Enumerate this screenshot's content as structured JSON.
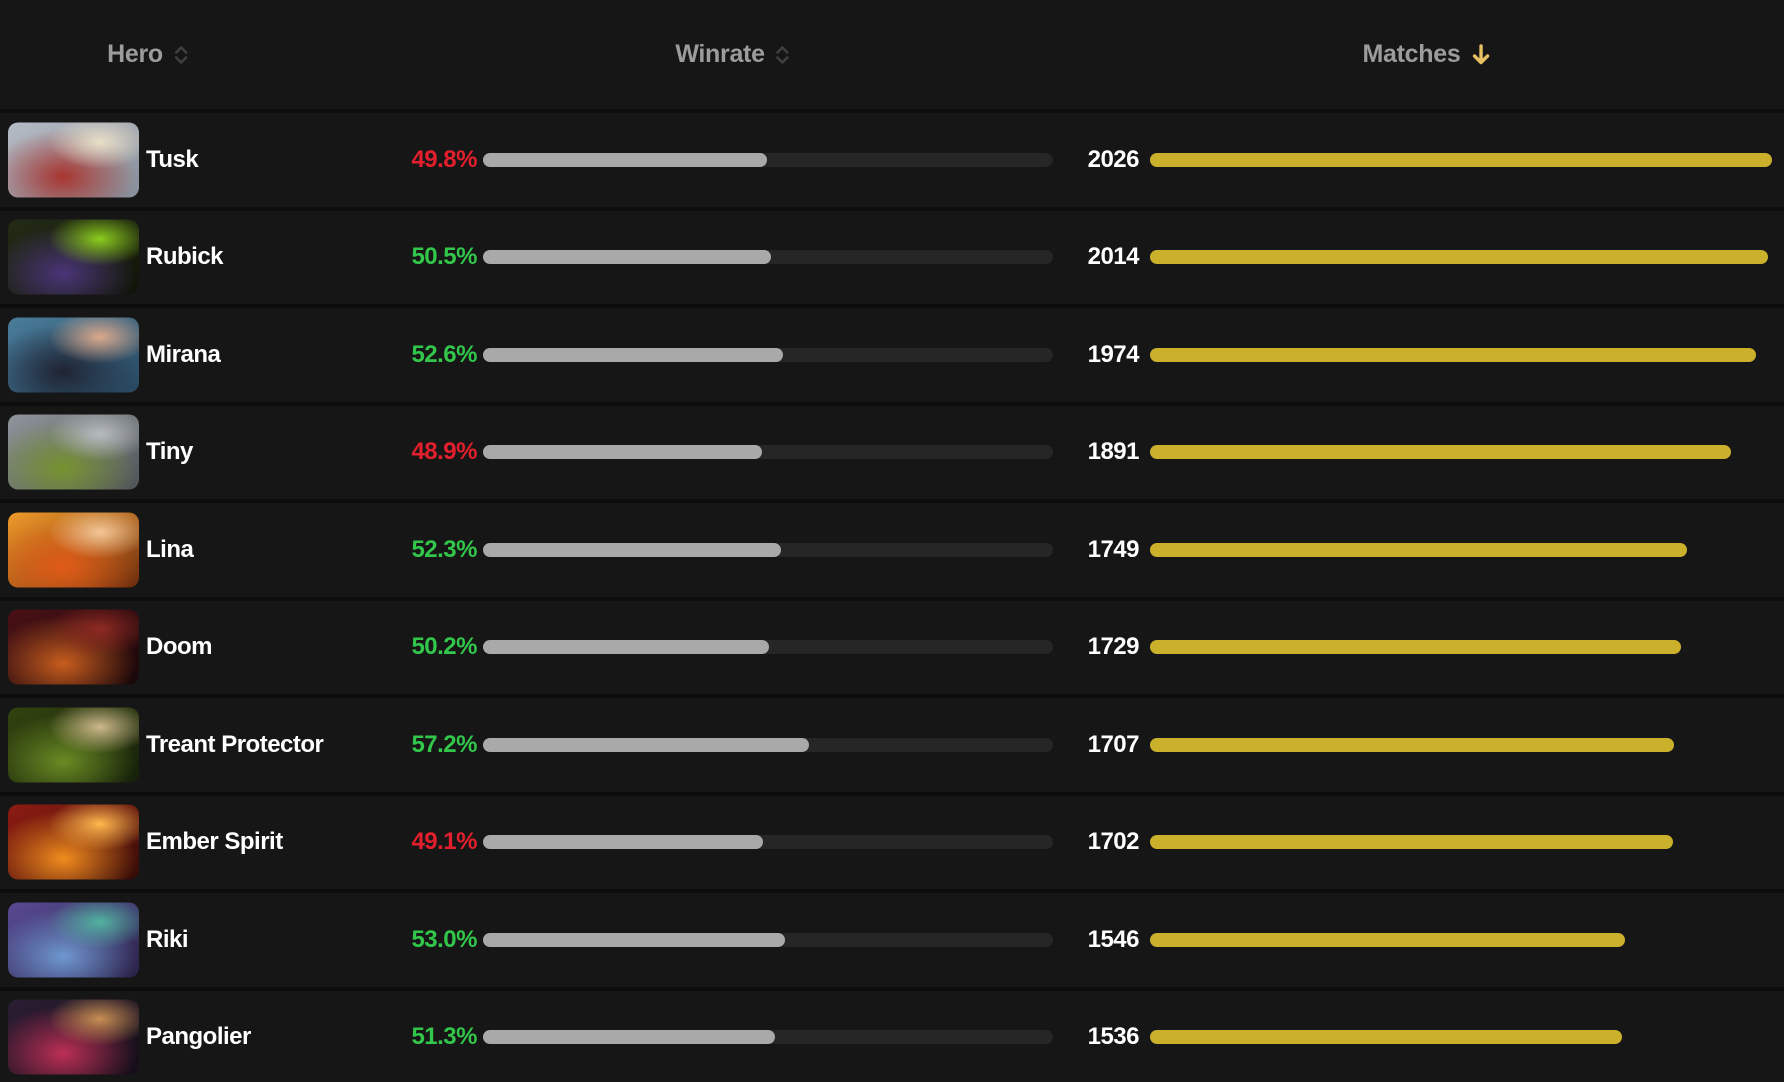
{
  "columns": {
    "hero": {
      "label": "Hero",
      "sort_icon": "sort-both-icon"
    },
    "winrate": {
      "label": "Winrate",
      "sort_icon": "sort-both-icon"
    },
    "matches": {
      "label": "Matches",
      "sort_icon": "sort-desc-arrow-icon",
      "sorted": "descending"
    }
  },
  "colors": {
    "background": "#161616",
    "row_separator": "#0d0d0d",
    "header_text": "#9c9c9c",
    "sort_icon": "#3f3f3f",
    "sort_active_arrow": "#e6c162",
    "hero_name_text": "#ffffff",
    "matches_text": "#ffffff",
    "winrate_positive": "#32c64a",
    "winrate_negative": "#e41f2d",
    "winrate_bar_fill": "#a9a9a9",
    "winrate_bar_track": "#262626",
    "matches_bar_fill": "#cbb02c"
  },
  "bars": {
    "winrate_max_pct": 100,
    "matches_max": 2026
  },
  "rows": [
    {
      "hero": "Tusk",
      "winrate_pct": "49.8%",
      "winrate_value": 49.8,
      "trend": "negative",
      "matches": "2026",
      "matches_value": 2026,
      "portrait": {
        "bg1": "#b6bcc6",
        "bg2": "#868e99",
        "body": "#a83530",
        "accent": "#e9dfc8"
      }
    },
    {
      "hero": "Rubick",
      "winrate_pct": "50.5%",
      "winrate_value": 50.5,
      "trend": "positive",
      "matches": "2014",
      "matches_value": 2014,
      "portrait": {
        "bg1": "#232b16",
        "bg2": "#101408",
        "body": "#4a3578",
        "accent": "#8ccc1e"
      }
    },
    {
      "hero": "Mirana",
      "winrate_pct": "52.6%",
      "winrate_value": 52.6,
      "trend": "positive",
      "matches": "1974",
      "matches_value": 1974,
      "portrait": {
        "bg1": "#4a7d9b",
        "bg2": "#27475f",
        "body": "#1f2433",
        "accent": "#dba98c"
      }
    },
    {
      "hero": "Tiny",
      "winrate_pct": "48.9%",
      "winrate_value": 48.9,
      "trend": "negative",
      "matches": "1891",
      "matches_value": 1891,
      "portrait": {
        "bg1": "#90959b",
        "bg2": "#4f5357",
        "body": "#76922f",
        "accent": "#b8bcc0"
      }
    },
    {
      "hero": "Lina",
      "winrate_pct": "52.3%",
      "winrate_value": 52.3,
      "trend": "positive",
      "matches": "1749",
      "matches_value": 1749,
      "portrait": {
        "bg1": "#ef9a2a",
        "bg2": "#6e2c0d",
        "body": "#e05a17",
        "accent": "#f3c797"
      }
    },
    {
      "hero": "Doom",
      "winrate_pct": "50.2%",
      "winrate_value": 50.2,
      "trend": "positive",
      "matches": "1729",
      "matches_value": 1729,
      "portrait": {
        "bg1": "#4a1116",
        "bg2": "#170709",
        "body": "#c75d1e",
        "accent": "#8e2a22"
      }
    },
    {
      "hero": "Treant Protector",
      "winrate_pct": "57.2%",
      "winrate_value": 57.2,
      "trend": "positive",
      "matches": "1707",
      "matches_value": 1707,
      "portrait": {
        "bg1": "#32430f",
        "bg2": "#15200a",
        "body": "#6a8b24",
        "accent": "#cdb98a"
      }
    },
    {
      "hero": "Ember Spirit",
      "winrate_pct": "49.1%",
      "winrate_value": 49.1,
      "trend": "negative",
      "matches": "1702",
      "matches_value": 1702,
      "portrait": {
        "bg1": "#8e1c12",
        "bg2": "#340c08",
        "body": "#f08c1e",
        "accent": "#ffb84d"
      }
    },
    {
      "hero": "Riki",
      "winrate_pct": "53.0%",
      "winrate_value": 53.0,
      "trend": "positive",
      "matches": "1546",
      "matches_value": 1546,
      "portrait": {
        "bg1": "#584a92",
        "bg2": "#2a2248",
        "body": "#6e97cf",
        "accent": "#52b2a0"
      }
    },
    {
      "hero": "Pangolier",
      "winrate_pct": "51.3%",
      "winrate_value": 51.3,
      "trend": "positive",
      "matches": "1536",
      "matches_value": 1536,
      "portrait": {
        "bg1": "#2b1d33",
        "bg2": "#140d18",
        "body": "#bb2f55",
        "accent": "#c78d52"
      }
    }
  ]
}
